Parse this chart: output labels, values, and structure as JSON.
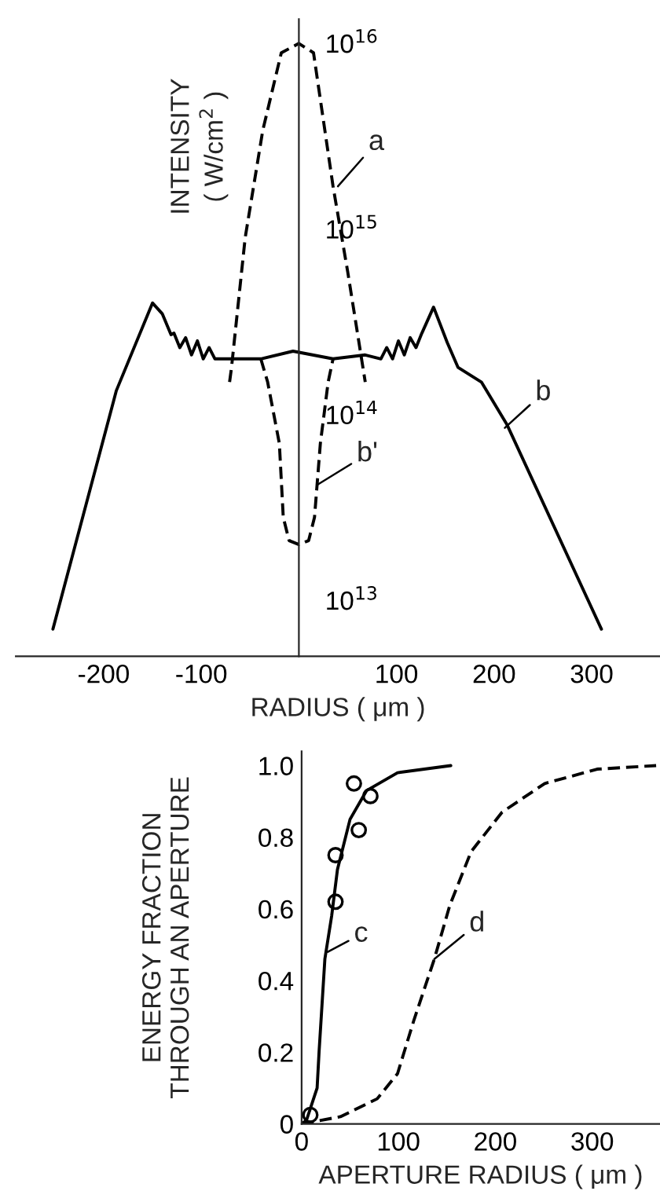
{
  "chart_data": [
    {
      "type": "line",
      "log": "y",
      "xlabel": "RADIUS ( μm )",
      "ylabel": "INTENSITY\n( W/cm$^{2}$ )",
      "xlim": [
        -290,
        370
      ],
      "xticks": [
        -200,
        -100,
        100,
        200,
        300
      ],
      "ylim": [
        5000000000000.0,
        1.35e+16
      ],
      "yticks": [
        {
          "value": 10000000000000.0,
          "label": "10$^{13}$"
        },
        {
          "value": 100000000000000.0,
          "label": "10$^{14}$"
        },
        {
          "value": 1000000000000000.0,
          "label": "10$^{15}$"
        },
        {
          "value": 1e+16,
          "label": "10$^{16}$"
        }
      ],
      "series": [
        {
          "color": "#000000",
          "line_style": "dashed",
          "x": [
            -71,
            -69,
            -55,
            -37,
            -18,
            0,
            15,
            35,
            50,
            68
          ],
          "values": [
            150000000000000.0,
            180000000000000.0,
            900000000000000.0,
            3400000000000000.0,
            8900000000000000.0,
            1e+16,
            8900000000000000.0,
            1700000000000000.0,
            590000000000000.0,
            150000000000000.0
          ]
        },
        {
          "color": "#000000",
          "line_style": "solid",
          "x": [
            -252,
            -187,
            -150,
            -140,
            -131,
            -128,
            -122,
            -116,
            -110,
            -104,
            -98,
            -92,
            -86,
            -82,
            -39,
            -6,
            35,
            68,
            84,
            90,
            96,
            102,
            108,
            114,
            120,
            126,
            138,
            152,
            163,
            187,
            213,
            310
          ],
          "values": [
            7000000000000.0,
            135000000000000.0,
            400000000000000.0,
            350000000000000.0,
            270000000000000.0,
            275000000000000.0,
            230000000000000.0,
            260000000000000.0,
            210000000000000.0,
            250000000000000.0,
            200000000000000.0,
            230000000000000.0,
            200000000000000.0,
            200000000000000.0,
            200000000000000.0,
            220000000000000.0,
            200000000000000.0,
            210000000000000.0,
            200000000000000.0,
            230000000000000.0,
            200000000000000.0,
            250000000000000.0,
            210000000000000.0,
            260000000000000.0,
            230000000000000.0,
            275000000000000.0,
            380000000000000.0,
            245000000000000.0,
            180000000000000.0,
            150000000000000.0,
            89000000000000.0,
            7000000000000.0
          ]
        },
        {
          "color": "#000000",
          "line_style": "dashed",
          "x": [
            -39,
            -32,
            -20,
            -16,
            -10,
            0,
            10,
            16,
            22,
            30,
            35
          ],
          "values": [
            200000000000000.0,
            150000000000000.0,
            70000000000000.0,
            28000000000000.0,
            21000000000000.0,
            20000000000000.0,
            21000000000000.0,
            28000000000000.0,
            70000000000000.0,
            150000000000000.0,
            200000000000000.0
          ]
        }
      ],
      "annotations": [
        {
          "text": "a",
          "x": 40,
          "y": 1700000000000000.0
        },
        {
          "text": "b",
          "x": 211,
          "y": 85000000000000.0
        },
        {
          "text": "b'",
          "x": 19,
          "y": 42000000000000.0
        }
      ]
    },
    {
      "type": "line",
      "xlabel": "APERTURE RADIUS ( μm )",
      "ylabel": "ENERGY FRACTION\nTHROUGH AN APERTURE",
      "xlim": [
        0,
        370
      ],
      "xticks": [
        0,
        100,
        200,
        300
      ],
      "ylim": [
        0,
        1.04
      ],
      "yticks": [
        {
          "value": 0,
          "label": "0"
        },
        0.2,
        0.4,
        0.6,
        0.8,
        {
          "value": 1.0,
          "label": "1.0"
        }
      ],
      "series": [
        {
          "color": "#000000",
          "line_style": "solid",
          "x": [
            0,
            5,
            16,
            18,
            24,
            31,
            37,
            50,
            67,
            99,
            154
          ],
          "values": [
            0,
            0.01,
            0.1,
            0.2,
            0.46,
            0.58,
            0.71,
            0.85,
            0.93,
            0.98,
            1.0
          ]
        },
        {
          "color": "#000000",
          "line_style": "dashed",
          "x": [
            0,
            40,
            78,
            99,
            116,
            137,
            153,
            175,
            207,
            251,
            305,
            366
          ],
          "values": [
            0,
            0.02,
            0.07,
            0.14,
            0.29,
            0.46,
            0.61,
            0.76,
            0.87,
            0.95,
            0.99,
            1.0
          ]
        },
        {
          "type": "scatter",
          "color": "#000000",
          "marker": "circle",
          "x": [
            9,
            35,
            35,
            54,
            59,
            71
          ],
          "values": [
            0.025,
            0.62,
            0.75,
            0.95,
            0.82,
            0.915
          ]
        }
      ],
      "annotations": [
        {
          "text": "c",
          "x": 27,
          "y": 0.48
        },
        {
          "text": "d",
          "x": 137,
          "y": 0.46
        }
      ]
    }
  ]
}
